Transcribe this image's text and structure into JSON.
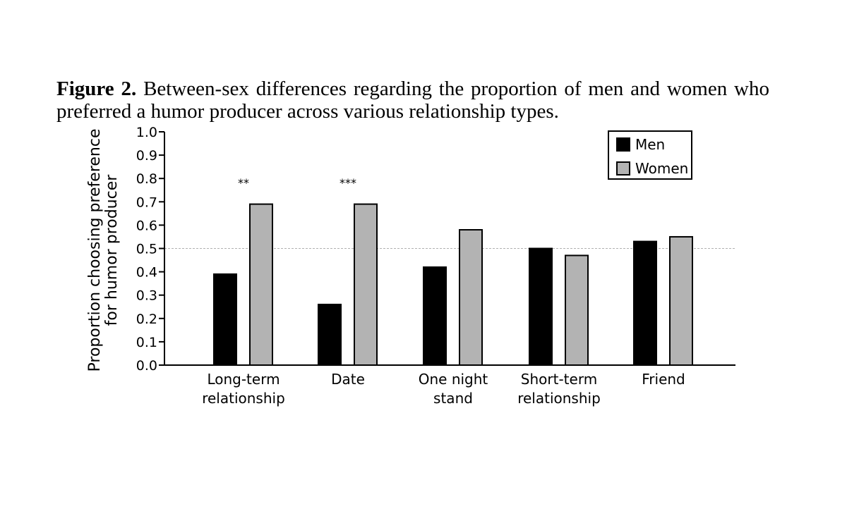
{
  "caption": {
    "label": "Figure 2.",
    "text": "Between-sex differences regarding the proportion of men and women who preferred a humor producer across various relationship types."
  },
  "chart_data": {
    "type": "bar",
    "title": "",
    "xlabel": "",
    "ylabel_lines": [
      "Proportion choosing preference",
      "for humor producer"
    ],
    "ylim": [
      0,
      1.0
    ],
    "yticks": [
      "0.0",
      "0.1",
      "0.2",
      "0.3",
      "0.4",
      "0.5",
      "0.6",
      "0.7",
      "0.8",
      "0.9",
      "1.0"
    ],
    "reference_line": 0.5,
    "categories": [
      [
        "Long-term",
        "relationship"
      ],
      [
        "Date"
      ],
      [
        "One night",
        "stand"
      ],
      [
        "Short-term",
        "relationship"
      ],
      [
        "Friend"
      ]
    ],
    "series": [
      {
        "name": "Men",
        "color": "#000000",
        "values": [
          0.39,
          0.26,
          0.42,
          0.5,
          0.53
        ]
      },
      {
        "name": "Women",
        "color": "#b3b3b3",
        "values": [
          0.69,
          0.69,
          0.58,
          0.47,
          0.55
        ]
      }
    ],
    "annotations": [
      "**",
      "***",
      "",
      "",
      ""
    ],
    "legend": {
      "position": "top-right",
      "entries": [
        "Men",
        "Women"
      ]
    }
  }
}
